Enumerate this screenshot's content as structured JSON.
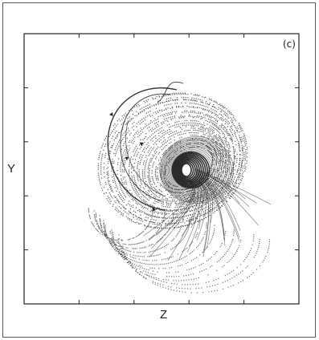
{
  "figure": {
    "panel_label": "(c)"
  },
  "chart_data": {
    "type": "scatter",
    "title": "",
    "xlabel": "Z",
    "ylabel": "Y",
    "grid": false,
    "legend": "none",
    "tick_labels_shown": false,
    "x_ticks_count": 5,
    "y_ticks_count": 5,
    "series": [
      {
        "style": "dotted-trajectory",
        "description_role": "trajectory",
        "color": "#222222"
      }
    ],
    "colors": {
      "ink": "#222222",
      "background": "#ffffff",
      "frame": "#555555"
    }
  }
}
